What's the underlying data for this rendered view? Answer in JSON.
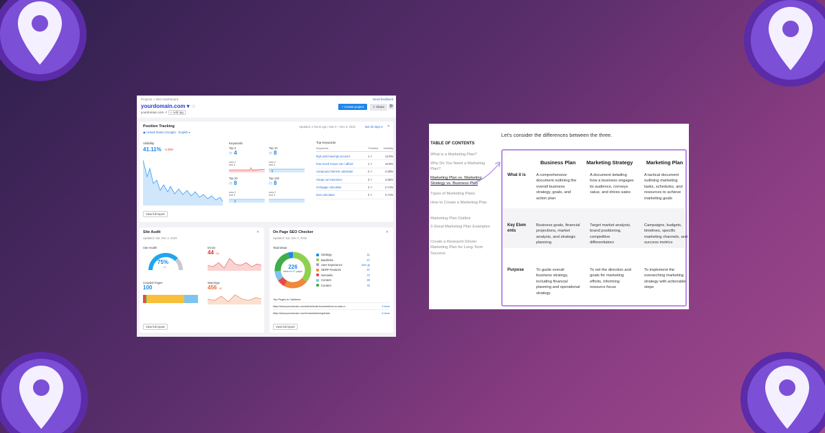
{
  "colors": {
    "accent_blue": "#1f86e8",
    "purple_border": "#b58ee6",
    "bg_gradient_start": "#2e1f4d",
    "bg_gradient_end": "#a04a8e"
  },
  "dashboard": {
    "breadcrumb": "Projects  >  SEO Dashboard",
    "send_feedback": "Send feedback",
    "domain": "yourdomain.com",
    "subdomain": "yourdomain.com",
    "add_tag": "Add tag",
    "create_project": "Create project",
    "share": "Share",
    "position_tracking": {
      "title": "Position Tracking",
      "location": "United States (Google) · English",
      "updated": "Updated: 2 hours ago   |   Nov 6 – Dec 5, 2023",
      "range": "last 30 days",
      "visibility_label": "Visibility",
      "visibility_value": "41.11%",
      "visibility_change": "-4.45%",
      "keywords_label": "Keywords",
      "top3_label": "Top 3",
      "top3_value": "4",
      "top10_label": "Top 10",
      "top10_value": "8",
      "top20_label": "Top 20",
      "top20_value": "8",
      "top100_label": "Top 100",
      "top100_value": "8",
      "new_label": "new",
      "lost_label": "lost",
      "new_val": "2",
      "lost_val": "3",
      "top_keywords_label": "Top Keywords",
      "col_keyword": "Keywords",
      "col_position": "Position",
      "col_visibility": "Visibility",
      "keywords": [
        {
          "k": "high yield savings account",
          "p": "1",
          "v": "12.5%"
        },
        {
          "k": "how much house can i afford",
          "p": "1",
          "v": "10.6%"
        },
        {
          "k": "compound interest calculator",
          "p": "2",
          "v": "4.29%"
        },
        {
          "k": "cheap car insurance",
          "p": "3",
          "v": "3.26%"
        },
        {
          "k": "mortgage calculator",
          "p": "4",
          "v": "2.71%"
        },
        {
          "k": "loan calculator",
          "p": "4",
          "v": "2.71%"
        }
      ],
      "view_full": "View full report"
    },
    "site_audit": {
      "title": "Site Audit",
      "updated": "Updated: Sat, Dec 2, 2023",
      "health_label": "Site Health",
      "health_value": "75%",
      "health_fraction": 0.75,
      "health_change": "+0",
      "errors_label": "Errors",
      "errors_value": "44",
      "errors_change": "-14",
      "crawled_label": "Crawled Pages",
      "crawled_value": "100",
      "warnings_label": "Warnings",
      "warnings_value": "456",
      "warnings_change": "-62",
      "view_full": "View full report"
    },
    "on_page": {
      "title": "On Page SEO Checker",
      "updated": "Updated: Sat, Dec 2, 2023",
      "total_ideas_label": "Total Ideas",
      "total_ideas_value": "226",
      "total_ideas_sub": "ideas for 47 pages",
      "ideas": [
        {
          "name": "Strategy",
          "count": "11",
          "color": "#1f86e8"
        },
        {
          "name": "Backlinks",
          "count": "47",
          "color": "#8fd14f"
        },
        {
          "name": "User Experience",
          "count": "Set up",
          "color": "#b68ee8"
        },
        {
          "name": "SERP Features",
          "count": "47",
          "color": "#f0883a"
        },
        {
          "name": "Semantic",
          "count": "72",
          "color": "#e84a4a"
        },
        {
          "name": "Content",
          "count": "30",
          "color": "#7fc4ef"
        },
        {
          "name": "Content",
          "count": "75",
          "color": "#3fae49"
        }
      ],
      "top_pages_label": "Top Pages to Optimize",
      "pages": [
        {
          "url": "https://www.yourdomain.com/article/small-business/how-to-start-a...",
          "ideas": "4 ideas"
        },
        {
          "url": "https://www.yourdomain.com/reviews/banking/chase",
          "ideas": "6 ideas"
        }
      ],
      "view_full": "View full report"
    }
  },
  "doc": {
    "lead": "Let's consider the differences between the three.",
    "toc_title": "TABLE OF CONTENTS",
    "toc": [
      "What is a Marketing Plan?",
      "Why Do You Need a Marketing Plan?",
      "Marketing Plan vs. Marketing Strategy vs. Business Plan",
      "Types of Marketing Plans",
      "How to Create a Marketing Plan",
      "Marketing Plan Outline",
      "3 Great Marketing Plan Examples",
      "Create a Research-Driven Marketing Plan for Long-Term Success"
    ],
    "columns": [
      "Business Plan",
      "Marketing Strategy",
      "Marketing Plan"
    ],
    "rows": [
      {
        "label": "What it is",
        "cells": [
          "A comprehensive document outlining the overall business strategy, goals, and action plan",
          "A document detailing how a business engages its audience, conveys value, and drives sales",
          "A tactical document outlining marketing tasks, schedules, and resources to achieve marketing goals"
        ]
      },
      {
        "label": "Key Elements",
        "cells": [
          "Business goals, financial projections, market analysis, and strategic planning",
          "Target market analysis, brand positioning, competitive differentiators",
          "Campaigns, budgets, timelines, specific marketing channels, and success metrics"
        ]
      },
      {
        "label": "Purpose",
        "cells": [
          "To guide overall business strategy, including financial planning and operational strategy",
          "To set the direction and goals for marketing efforts, informing resource focus",
          "To implement the overarching marketing strategy with actionable steps"
        ]
      }
    ]
  }
}
